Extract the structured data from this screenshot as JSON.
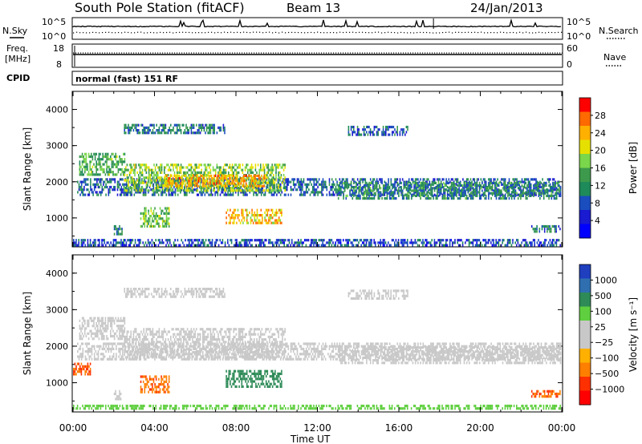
{
  "header": {
    "station": "South Pole Station (fitACF)",
    "beam": "Beam 13",
    "date": "24/Jan/2013"
  },
  "strips": {
    "nsky_label": "N.Sky",
    "nsky_ticks": [
      "10^5",
      "10^0"
    ],
    "nsearch_label": "N.Search",
    "nsearch_ticks": [
      "10^5",
      "10^0"
    ],
    "freq_label_1": "Freq.",
    "freq_label_2": "[MHz]",
    "freq_ticks": [
      "18",
      "8"
    ],
    "nave_label": "Nave",
    "nave_ticks": [
      "60",
      "0"
    ],
    "cpid_label": "CPID",
    "cpid_value": "normal (fast) 151 RF"
  },
  "chart_data": [
    {
      "type": "heatmap",
      "name": "power",
      "ylabel": "Slant Range [km]",
      "yticks": [
        1000,
        2000,
        3000,
        4000
      ],
      "ylim": [
        200,
        4500
      ],
      "xticks": [
        "00:00",
        "04:00",
        "08:00",
        "12:00",
        "16:00",
        "20:00",
        "00:00"
      ],
      "xlim_hours": [
        0,
        24
      ],
      "colorbar": {
        "label": "Power [dB]",
        "ticks": [
          "28",
          "24",
          "20",
          "16",
          "12",
          "8",
          "4"
        ],
        "colors": [
          "#ff0000",
          "#ff6a00",
          "#ffb000",
          "#e6e000",
          "#7ad64a",
          "#3d9a4c",
          "#1f8a5a",
          "#1a4dbe",
          "#1a1ad0",
          "#0000ff"
        ]
      },
      "regions": [
        {
          "t0": 0.2,
          "t1": 24,
          "r0": 1550,
          "r1": 2100,
          "level": 0.25
        },
        {
          "t0": 0.3,
          "t1": 2.6,
          "r0": 2100,
          "r1": 2800,
          "level": 0.45
        },
        {
          "t0": 2.5,
          "t1": 10.5,
          "r0": 1650,
          "r1": 2500,
          "level": 0.55
        },
        {
          "t0": 4.5,
          "t1": 9.5,
          "r0": 1800,
          "r1": 2200,
          "level": 0.8
        },
        {
          "t0": 13,
          "t1": 24,
          "r0": 1500,
          "r1": 2000,
          "level": 0.35
        },
        {
          "t0": 7.5,
          "t1": 10.3,
          "r0": 800,
          "r1": 1250,
          "level": 0.75
        },
        {
          "t0": 3.3,
          "t1": 4.8,
          "r0": 700,
          "r1": 1300,
          "level": 0.5
        },
        {
          "t0": 2.0,
          "t1": 2.5,
          "r0": 500,
          "r1": 800,
          "level": 0.35
        },
        {
          "t0": 0.0,
          "t1": 24,
          "r0": 200,
          "r1": 420,
          "level": 0.2
        },
        {
          "t0": 2.5,
          "t1": 7.5,
          "r0": 3300,
          "r1": 3600,
          "level": 0.3
        },
        {
          "t0": 13.5,
          "t1": 16.5,
          "r0": 3200,
          "r1": 3550,
          "level": 0.25
        },
        {
          "t0": 22.5,
          "t1": 24,
          "r0": 550,
          "r1": 800,
          "level": 0.3
        }
      ]
    },
    {
      "type": "heatmap",
      "name": "velocity",
      "ylabel": "Slant Range [km]",
      "yticks": [
        1000,
        2000,
        3000,
        4000
      ],
      "ylim": [
        200,
        4500
      ],
      "xticks": [
        "00:00",
        "04:00",
        "08:00",
        "12:00",
        "16:00",
        "20:00",
        "00:00"
      ],
      "xlabel": "Time UT",
      "colorbar": {
        "label": "Velocity [m s⁻¹]",
        "ticks": [
          "1000",
          "500",
          "100",
          "25",
          "−25",
          "−100",
          "−500",
          "−1000"
        ],
        "colors": [
          "#1f3fbf",
          "#2f6fb0",
          "#2e8b57",
          "#5fcf3f",
          "#c8c8c8",
          "#c8c8c8",
          "#ffb000",
          "#ff7f00",
          "#ff3000",
          "#ff0000"
        ]
      },
      "regions": [
        {
          "t0": 0.2,
          "t1": 24,
          "r0": 1550,
          "r1": 2100,
          "v": 0
        },
        {
          "t0": 0.3,
          "t1": 2.6,
          "r0": 2100,
          "r1": 2800,
          "v": 0
        },
        {
          "t0": 2.5,
          "t1": 10.5,
          "r0": 1650,
          "r1": 2500,
          "v": 0
        },
        {
          "t0": 13,
          "t1": 24,
          "r0": 1500,
          "r1": 2000,
          "v": 0
        },
        {
          "t0": 7.5,
          "t1": 10.3,
          "r0": 800,
          "r1": 1350,
          "v": 300
        },
        {
          "t0": 3.3,
          "t1": 4.8,
          "r0": 700,
          "r1": 1200,
          "v": -400
        },
        {
          "t0": 0.0,
          "t1": 0.9,
          "r0": 1150,
          "r1": 1550,
          "v": -500
        },
        {
          "t0": 22.5,
          "t1": 24,
          "r0": 550,
          "r1": 800,
          "v": -500
        },
        {
          "t0": 2.0,
          "t1": 2.4,
          "r0": 500,
          "r1": 800,
          "v": 0
        },
        {
          "t0": 0.0,
          "t1": 24,
          "r0": 200,
          "r1": 400,
          "v": 50
        },
        {
          "t0": 2.5,
          "t1": 7.5,
          "r0": 3300,
          "r1": 3600,
          "v": 0
        },
        {
          "t0": 13.5,
          "t1": 16.5,
          "r0": 3200,
          "r1": 3550,
          "v": 0
        }
      ]
    }
  ]
}
